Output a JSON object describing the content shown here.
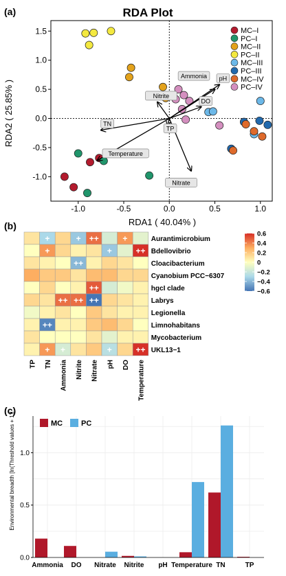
{
  "panels": {
    "a": "(a)",
    "b": "(b)",
    "c": "(c)"
  },
  "chart_data": [
    {
      "type": "scatter",
      "title": "RDA Plot",
      "xlabel": "RDA1 ( 40.04% )",
      "ylabel": "RDA2 ( 25.85% )",
      "xlim": [
        -1.3,
        1.13
      ],
      "ylim": [
        -1.42,
        1.68
      ],
      "xticks": [
        -1.0,
        -0.5,
        0.0,
        0.5,
        1.0
      ],
      "xtick_labels": [
        "-1.0",
        "-0.5",
        "0.0",
        "0.5",
        "1.0"
      ],
      "yticks": [
        1.5,
        1.0,
        0.5,
        0.0,
        -0.5,
        -1.0
      ],
      "ytick_labels": [
        "1.5",
        "1.0",
        "0.5",
        "0.0",
        "-0.5",
        "-1.0"
      ],
      "grid": false,
      "legend_position": "top-right",
      "series": [
        {
          "name": "MC–I",
          "color": "#b31b2e",
          "points": [
            [
              -1.15,
              -1.0
            ],
            [
              -1.05,
              -1.18
            ],
            [
              -0.87,
              -0.75
            ],
            [
              -0.77,
              -0.68
            ]
          ]
        },
        {
          "name": "PC–I",
          "color": "#20956b",
          "points": [
            [
              -1.0,
              -0.6
            ],
            [
              -0.9,
              -1.28
            ],
            [
              -0.72,
              -0.73
            ],
            [
              -0.22,
              -0.98
            ]
          ]
        },
        {
          "name": "MC–II",
          "color": "#e3a21c",
          "points": [
            [
              -0.42,
              0.87
            ],
            [
              -0.44,
              0.71
            ],
            [
              -0.07,
              0.54
            ],
            [
              -0.04,
              0.35
            ]
          ]
        },
        {
          "name": "PC–II",
          "color": "#f4e940",
          "points": [
            [
              -0.92,
              1.46
            ],
            [
              -0.83,
              1.47
            ],
            [
              -0.88,
              1.26
            ],
            [
              -0.64,
              1.5
            ]
          ]
        },
        {
          "name": "MC–III",
          "color": "#6cb8e8",
          "points": [
            [
              0.43,
              0.11
            ],
            [
              0.48,
              0.12
            ],
            [
              0.93,
              -0.27
            ],
            [
              1.0,
              0.3
            ]
          ]
        },
        {
          "name": "PC–III",
          "color": "#2169ad",
          "points": [
            [
              0.68,
              -0.52
            ],
            [
              0.82,
              -0.06
            ],
            [
              0.99,
              -0.04
            ],
            [
              1.08,
              -0.11
            ]
          ]
        },
        {
          "name": "MC–IV",
          "color": "#de6a2b",
          "points": [
            [
              0.7,
              -0.55
            ],
            [
              0.84,
              -0.1
            ],
            [
              1.02,
              -0.31
            ],
            [
              0.93,
              -0.22
            ]
          ]
        },
        {
          "name": "PC–IV",
          "color": "#d48fbf",
          "points": [
            [
              0.1,
              0.5
            ],
            [
              0.16,
              0.4
            ],
            [
              0.22,
              0.3
            ],
            [
              0.07,
              0.33
            ],
            [
              0.55,
              -0.12
            ],
            [
              0.18,
              -0.02
            ],
            [
              0.14,
              0.16
            ]
          ]
        }
      ],
      "vectors": [
        {
          "label": "Ammonia",
          "end": [
            0.5,
            0.5
          ],
          "label_at": [
            0.27,
            0.73
          ]
        },
        {
          "label": "pH",
          "end": [
            0.55,
            0.58
          ],
          "label_at": [
            0.59,
            0.69
          ]
        },
        {
          "label": "DO",
          "end": [
            0.35,
            0.2
          ],
          "label_at": [
            0.4,
            0.3
          ]
        },
        {
          "label": "Nitrite",
          "end": [
            -0.13,
            0.28
          ],
          "label_at": [
            -0.09,
            0.39
          ]
        },
        {
          "label": "TN",
          "end": [
            -0.75,
            -0.2
          ],
          "label_at": [
            -0.68,
            -0.09
          ]
        },
        {
          "label": "TP",
          "end": [
            -0.02,
            -0.12
          ],
          "label_at": [
            0.01,
            -0.17
          ]
        },
        {
          "label": "Temperature",
          "end": [
            -0.79,
            -0.72
          ],
          "label_at": [
            -0.48,
            -0.6
          ]
        },
        {
          "label": "Nitrate",
          "end": [
            0.24,
            -0.9
          ],
          "label_at": [
            0.13,
            -1.1
          ]
        }
      ]
    },
    {
      "type": "heatmap",
      "colorbar": {
        "ticks": [
          0.6,
          0.4,
          0.2,
          0.0,
          -0.2,
          -0.4,
          -0.6
        ],
        "tick_labels": [
          "0.6",
          "0.4",
          "0.2",
          "0",
          "−0.2",
          "−0.4",
          "−0.6"
        ],
        "colors": [
          "#d73027",
          "#fdae61",
          "#ffffbf",
          "#abd9e9",
          "#4575b4"
        ]
      },
      "columns": [
        "TP",
        "TN",
        "Ammonia",
        "Nitrite",
        "Nitrate",
        "pH",
        "DO",
        "Temperature"
      ],
      "rows": [
        "Aurantimicrobium",
        "Bdellovibrio",
        "Cloacibacterium",
        "Cyanobium PCC−6307",
        "hgcI clade",
        "Labrys",
        "Legionella",
        "Limnohabitans",
        "Mycobacterium",
        "UKL13−1"
      ],
      "values": [
        [
          0.1,
          -0.3,
          0.15,
          -0.35,
          0.45,
          -0.15,
          0.35,
          -0.1
        ],
        [
          0.0,
          0.35,
          0.15,
          0.05,
          0.1,
          -0.35,
          -0.1,
          0.65
        ],
        [
          0.1,
          0.05,
          0.0,
          -0.4,
          0.05,
          0.15,
          0.1,
          0.0
        ],
        [
          0.3,
          0.2,
          0.2,
          0.1,
          0.25,
          0.25,
          0.15,
          0.15
        ],
        [
          0.0,
          0.15,
          0.0,
          0.05,
          0.5,
          -0.15,
          -0.05,
          0.05
        ],
        [
          0.15,
          0.1,
          0.45,
          0.45,
          -0.6,
          0.15,
          0.1,
          0.05
        ],
        [
          -0.05,
          0.05,
          0.1,
          0.0,
          0.2,
          0.1,
          0.05,
          0.05
        ],
        [
          0.05,
          -0.55,
          0.05,
          0.05,
          0.2,
          0.25,
          0.15,
          0.0
        ],
        [
          0.1,
          0.0,
          0.0,
          0.0,
          0.1,
          -0.1,
          0.05,
          0.05
        ],
        [
          0.05,
          0.35,
          -0.15,
          0.1,
          0.2,
          -0.25,
          0.15,
          0.6
        ]
      ],
      "marks": [
        [
          "",
          "+",
          "",
          "+",
          "++",
          "",
          "+",
          ""
        ],
        [
          "",
          "+",
          "",
          "",
          "",
          "+",
          "",
          "++"
        ],
        [
          "",
          "",
          "",
          "++",
          "",
          "",
          "",
          ""
        ],
        [
          "",
          "",
          "",
          "",
          "",
          "",
          "",
          ""
        ],
        [
          "",
          "",
          "",
          "",
          "++",
          "",
          "",
          ""
        ],
        [
          "",
          "",
          "++",
          "++",
          "++",
          "",
          "",
          ""
        ],
        [
          "",
          "",
          "",
          "",
          "",
          "",
          "",
          ""
        ],
        [
          "",
          "++",
          "",
          "",
          "",
          "",
          "",
          ""
        ],
        [
          "",
          "",
          "",
          "",
          "",
          "",
          "",
          ""
        ],
        [
          "",
          "+",
          "+",
          "",
          "",
          "+",
          "",
          "++"
        ]
      ]
    },
    {
      "type": "bar",
      "ylabel": "Environmental breadth [ln(Threshold values + 1)]",
      "ylim": [
        0,
        1.35
      ],
      "yticks": [
        0.0,
        0.5,
        1.0
      ],
      "ytick_labels": [
        "0.0",
        "0.5",
        "1.0"
      ],
      "legend_position": "top-left",
      "categories": [
        "Ammonia",
        "DO",
        "Nitrate",
        "Nitrite",
        "pH",
        "Temperature",
        "TN",
        "TP"
      ],
      "series": [
        {
          "name": "MC",
          "color": "#b0182a",
          "values": [
            0.18,
            0.11,
            0.0,
            0.015,
            0.0,
            0.05,
            0.62,
            0.0
          ]
        },
        {
          "name": "PC",
          "color": "#5aaee0",
          "values": [
            0.0,
            0.0,
            0.055,
            0.01,
            0.0,
            0.72,
            1.26,
            0.0
          ]
        }
      ]
    }
  ]
}
